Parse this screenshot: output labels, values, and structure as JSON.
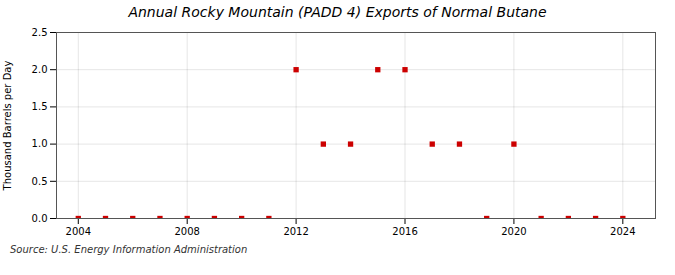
{
  "chart_data": {
    "type": "scatter",
    "title": "Annual Rocky Mountain (PADD 4) Exports of Normal Butane",
    "y_label": "Thousand Barrels per Day",
    "annotations": [
      "Source: U.S. Energy Information Administration"
    ],
    "x": [
      2004,
      2005,
      2006,
      2007,
      2008,
      2009,
      2010,
      2011,
      2012,
      2013,
      2014,
      2015,
      2016,
      2017,
      2018,
      2019,
      2020,
      2021,
      2022,
      2023,
      2024
    ],
    "values": [
      0,
      0,
      0,
      0,
      0,
      0,
      0,
      0,
      2.0,
      1.0,
      1.0,
      2.0,
      2.0,
      1.0,
      1.0,
      0,
      1.0,
      0,
      0,
      0,
      0
    ],
    "color": "#cc0000",
    "marker": "square",
    "xlim": [
      2003.2,
      2025.2
    ],
    "xticks": [
      2004,
      2008,
      2012,
      2016,
      2020,
      2024
    ],
    "ylim": [
      0,
      2.5
    ],
    "yticks": [
      {
        "value": 0,
        "label": "0.0"
      },
      0.5,
      {
        "value": 1,
        "label": "1.0"
      },
      1.5,
      {
        "value": 2,
        "label": "2.0"
      },
      2.5
    ],
    "grid": true
  }
}
